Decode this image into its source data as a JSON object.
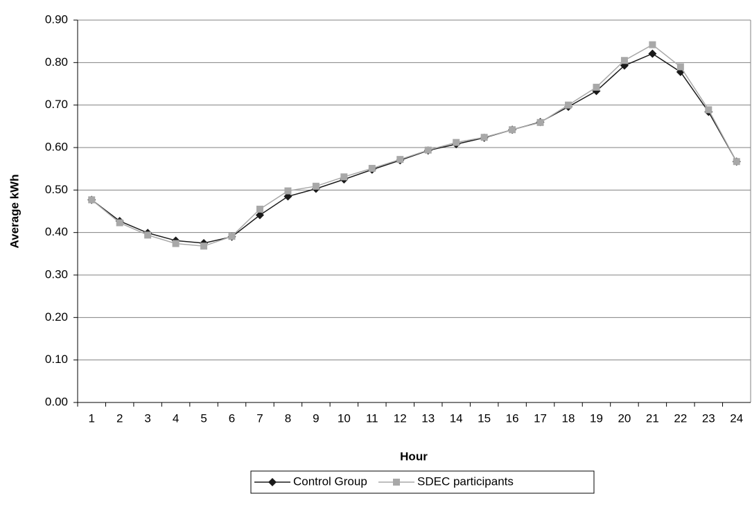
{
  "chart_data": {
    "type": "line",
    "y_label": "Average kWh",
    "x_label": "Hour",
    "categories": [
      "1",
      "2",
      "3",
      "4",
      "5",
      "6",
      "7",
      "8",
      "9",
      "10",
      "11",
      "12",
      "13",
      "14",
      "15",
      "16",
      "17",
      "18",
      "19",
      "20",
      "21",
      "22",
      "23",
      "24"
    ],
    "series": [
      {
        "name": "Control Group",
        "color": "#1a1a1a",
        "marker": "diamond",
        "values": [
          0.477,
          0.427,
          0.399,
          0.381,
          0.375,
          0.39,
          0.441,
          0.485,
          0.503,
          0.525,
          0.548,
          0.57,
          0.593,
          0.608,
          0.623,
          0.642,
          0.66,
          0.696,
          0.733,
          0.793,
          0.821,
          0.778,
          0.684,
          0.567
        ]
      },
      {
        "name": "SDEC participants",
        "color": "#a8a8a8",
        "marker": "square",
        "values": [
          0.477,
          0.423,
          0.394,
          0.374,
          0.368,
          0.391,
          0.455,
          0.498,
          0.509,
          0.531,
          0.551,
          0.572,
          0.594,
          0.612,
          0.624,
          0.642,
          0.659,
          0.7,
          0.742,
          0.805,
          0.842,
          0.79,
          0.689,
          0.567
        ]
      }
    ],
    "ylim": [
      0,
      0.9
    ],
    "yticks": [
      {
        "value": 0,
        "label": "0.00"
      },
      {
        "value": 0.1,
        "label": "0.10"
      },
      {
        "value": 0.2,
        "label": "0.20"
      },
      {
        "value": 0.3,
        "label": "0.30"
      },
      {
        "value": 0.4,
        "label": "0.40"
      },
      {
        "value": 0.5,
        "label": "0.50"
      },
      {
        "value": 0.6,
        "label": "0.60"
      },
      {
        "value": 0.7,
        "label": "0.70"
      },
      {
        "value": 0.8,
        "label": "0.80"
      },
      {
        "value": 0.9,
        "label": "0.90"
      }
    ],
    "grid": true,
    "legend": "bottom"
  }
}
